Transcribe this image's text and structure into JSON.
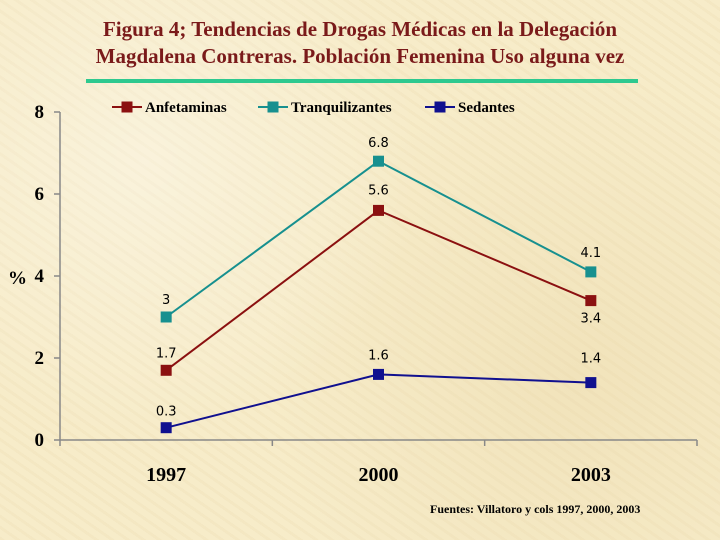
{
  "title_line1": "Figura 4; Tendencias de Drogas Médicas en  la Delegación",
  "title_line2": "Magdalena Contreras. Población Femenina Uso alguna vez",
  "source": "Fuentes: Villatoro y cols 1997, 2000, 2003",
  "colors": {
    "title": "#7a1a1a",
    "rule": "#2ec98f"
  },
  "chart_data": {
    "type": "line",
    "categories": [
      "1997",
      "2000",
      "2003"
    ],
    "ylabel": "%",
    "ylim": [
      0,
      8
    ],
    "yticks": [
      "0",
      "2",
      "4",
      "6",
      "8"
    ],
    "grid": false,
    "legend_position": "top",
    "series": [
      {
        "name": "Anfetaminas",
        "color": "#8b1010",
        "values": [
          1.7,
          5.6,
          3.4
        ],
        "labels": [
          "1.7",
          "5.6",
          "3.4"
        ]
      },
      {
        "name": "Tranquilizantes",
        "color": "#17908f",
        "values": [
          3,
          6.8,
          4.1
        ],
        "labels": [
          "3",
          "6.8",
          "4.1"
        ]
      },
      {
        "name": "Sedantes",
        "color": "#10108f",
        "values": [
          0.3,
          1.6,
          1.4
        ],
        "labels": [
          "0.3",
          "1.6",
          "1.4"
        ]
      }
    ]
  }
}
